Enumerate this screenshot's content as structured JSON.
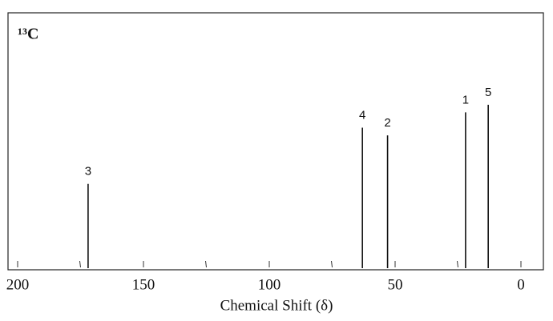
{
  "chart_data": {
    "type": "stick",
    "title": "¹³C",
    "xlabel": "Chemical Shift (δ)",
    "x": [
      172,
      63,
      53,
      22,
      13
    ],
    "values": [
      33,
      55,
      52,
      61,
      64
    ],
    "labels": [
      "3",
      "4",
      "2",
      "1",
      "5"
    ],
    "xlim": [
      200,
      0
    ],
    "xticks": [
      200,
      150,
      100,
      50,
      0
    ],
    "xminorticks": [
      175,
      125,
      75,
      25
    ],
    "ylim": [
      0,
      100
    ],
    "color": "#111111"
  }
}
